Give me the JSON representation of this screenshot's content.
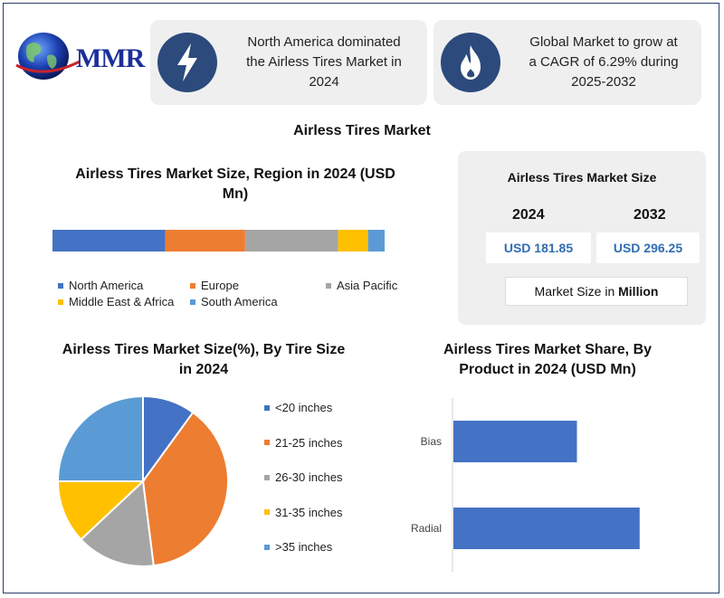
{
  "brand": {
    "logo_text": "MMR"
  },
  "highlights": [
    {
      "icon": "lightning-bolt-icon",
      "text_lines": [
        "North America dominated",
        "the Airless Tires Market in",
        "2024"
      ]
    },
    {
      "icon": "flame-icon",
      "text_lines": [
        "Global Market to grow at",
        "a CAGR of 6.29% during",
        "2025-2032"
      ]
    }
  ],
  "main_title": "Airless Tires Market",
  "market_size": {
    "title": "Airless Tires Market Size",
    "years": [
      {
        "year": "2024",
        "value": "USD 181.85"
      },
      {
        "year": "2032",
        "value": "USD 296.25"
      }
    ],
    "unit_prefix": "Market Size in ",
    "unit_bold": "Million"
  },
  "colors": {
    "blue": "#4472c4",
    "orange": "#ed7d31",
    "gray": "#a5a5a5",
    "yellow": "#ffc000",
    "lightblue": "#5b9bd5",
    "icon_bg": "#2c4a7c",
    "value_text": "#2f6db2"
  },
  "chart_data": [
    {
      "type": "bar",
      "orientation": "horizontal-stacked",
      "title_lines": [
        "Airless Tires Market Size, Region in 2024 (USD",
        "Mn)"
      ],
      "series": [
        {
          "name": "North America",
          "value": 34,
          "color": "#4472c4"
        },
        {
          "name": "Europe",
          "value": 24,
          "color": "#ed7d31"
        },
        {
          "name": "Asia Pacific",
          "value": 28,
          "color": "#a5a5a5"
        },
        {
          "name": "Middle East & Africa",
          "value": 9,
          "color": "#ffc000"
        },
        {
          "name": "South America",
          "value": 5,
          "color": "#5b9bd5"
        }
      ],
      "legend": "bottom"
    },
    {
      "type": "pie",
      "title_lines": [
        "Airless Tires Market Size(%), By Tire Size",
        "in 2024"
      ],
      "slices": [
        {
          "label": "<20 inches",
          "value": 10,
          "color": "#4472c4"
        },
        {
          "label": "21-25 inches",
          "value": 38,
          "color": "#ed7d31"
        },
        {
          "label": "26-30 inches",
          "value": 15,
          "color": "#a5a5a5"
        },
        {
          "label": "31-35 inches",
          "value": 12,
          "color": "#ffc000"
        },
        {
          "label": ">35 inches",
          "value": 25,
          "color": "#5b9bd5"
        }
      ],
      "legend": "right"
    },
    {
      "type": "bar",
      "orientation": "horizontal",
      "title_lines": [
        "Airless Tires Market Share, By",
        "Product in 2024 (USD Mn)"
      ],
      "categories": [
        "Bias",
        "Radial"
      ],
      "values": [
        65,
        98
      ],
      "xlim": [
        0,
        100
      ],
      "color": "#4472c4"
    }
  ]
}
